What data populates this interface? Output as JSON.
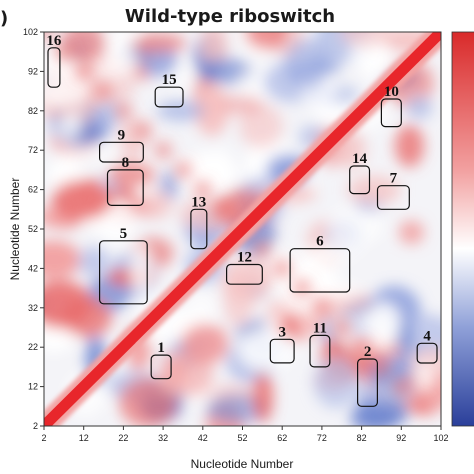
{
  "chart_data": {
    "type": "heatmap",
    "title": "Wild-type riboswitch",
    "panel_label": ")",
    "xlabel": "Nucleotide Number",
    "ylabel": "Nucleotide Number",
    "xlim": [
      2,
      102
    ],
    "ylim": [
      2,
      102
    ],
    "x_ticks": [
      "2",
      "12",
      "22",
      "32",
      "42",
      "52",
      "62",
      "72",
      "82",
      "92",
      "102"
    ],
    "y_ticks": [
      "2",
      "12",
      "22",
      "32",
      "42",
      "52",
      "62",
      "72",
      "82",
      "92",
      "102"
    ],
    "colors": {
      "high": "#e03535",
      "mid": "#ffffff",
      "low": "#3b58b8",
      "diagonal": "#e8262b"
    },
    "regions": [
      {
        "label": "1",
        "x": [
          29,
          34
        ],
        "y": [
          14,
          20
        ]
      },
      {
        "label": "2",
        "x": [
          81,
          86
        ],
        "y": [
          7,
          19
        ]
      },
      {
        "label": "3",
        "x": [
          59,
          65
        ],
        "y": [
          18,
          24
        ]
      },
      {
        "label": "4",
        "x": [
          96,
          101
        ],
        "y": [
          18,
          23
        ]
      },
      {
        "label": "5",
        "x": [
          16,
          28
        ],
        "y": [
          33,
          49
        ]
      },
      {
        "label": "6",
        "x": [
          64,
          79
        ],
        "y": [
          36,
          47
        ]
      },
      {
        "label": "7",
        "x": [
          86,
          94
        ],
        "y": [
          57,
          63
        ]
      },
      {
        "label": "8",
        "x": [
          18,
          27
        ],
        "y": [
          58,
          67
        ]
      },
      {
        "label": "9",
        "x": [
          16,
          27
        ],
        "y": [
          69,
          74
        ]
      },
      {
        "label": "10",
        "x": [
          87,
          92
        ],
        "y": [
          78,
          85
        ]
      },
      {
        "label": "11",
        "x": [
          69,
          74
        ],
        "y": [
          17,
          25
        ]
      },
      {
        "label": "12",
        "x": [
          48,
          57
        ],
        "y": [
          38,
          43
        ]
      },
      {
        "label": "13",
        "x": [
          39,
          43
        ],
        "y": [
          47,
          57
        ]
      },
      {
        "label": "14",
        "x": [
          79,
          84
        ],
        "y": [
          61,
          68
        ]
      },
      {
        "label": "15",
        "x": [
          30,
          37
        ],
        "y": [
          83,
          88
        ]
      },
      {
        "label": "16",
        "x": [
          3,
          6
        ],
        "y": [
          88,
          98
        ]
      }
    ]
  }
}
